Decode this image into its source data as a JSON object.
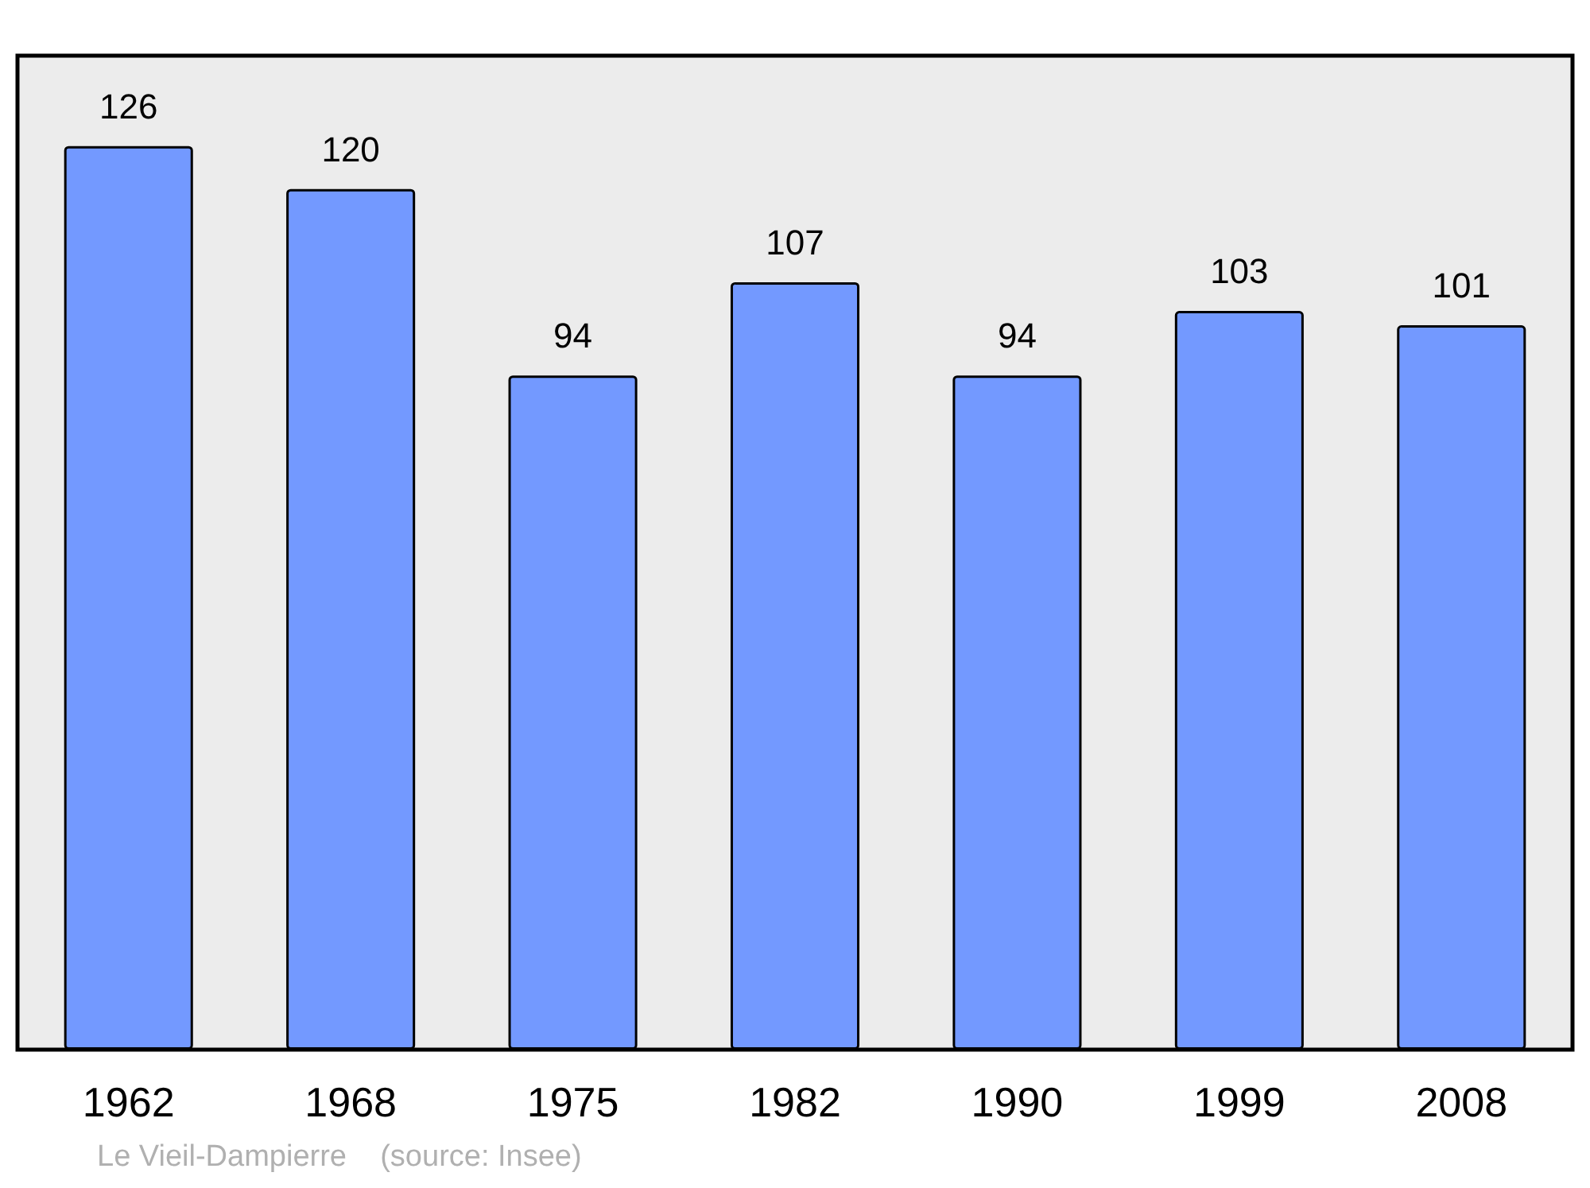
{
  "chart_data": {
    "type": "bar",
    "categories": [
      "1962",
      "1968",
      "1975",
      "1982",
      "1990",
      "1999",
      "2008"
    ],
    "values": [
      126,
      120,
      94,
      107,
      94,
      103,
      101
    ],
    "color": "#7399ff",
    "data_labels": true,
    "annotations": [
      "Le Vieil-Dampierre    (source: Insee)"
    ]
  }
}
